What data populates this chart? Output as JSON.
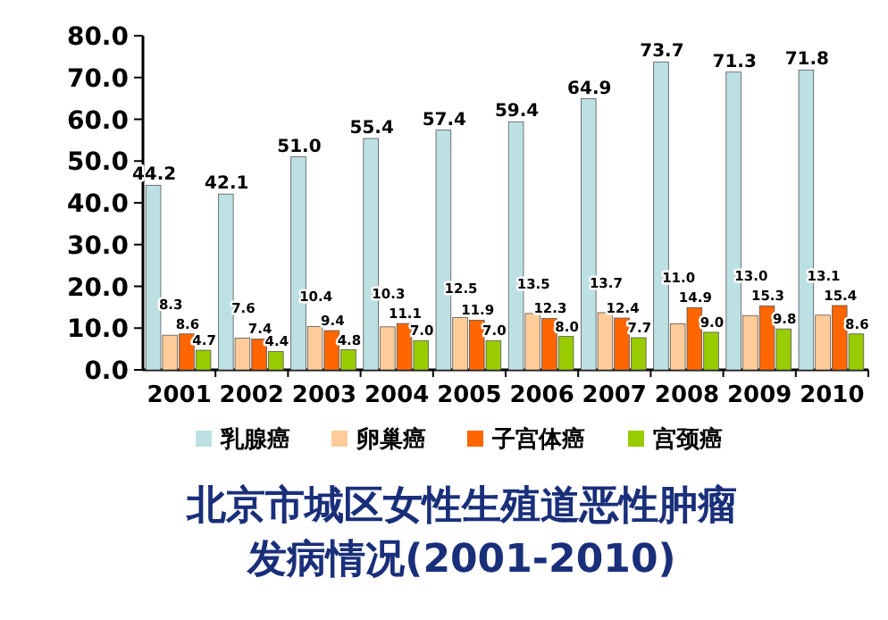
{
  "chart_data": {
    "type": "bar",
    "title": "北京市城区女性生殖道恶性肿瘤发病情况(2001-2010)",
    "categories": [
      "2001",
      "2002",
      "2003",
      "2004",
      "2005",
      "2006",
      "2007",
      "2008",
      "2009",
      "2010"
    ],
    "series": [
      {
        "name": "乳腺癌",
        "color": "#bde0e3",
        "values": [
          44.2,
          42.1,
          51.0,
          55.4,
          57.4,
          59.4,
          64.9,
          73.7,
          71.3,
          71.8
        ],
        "value_labels": [
          "44.2",
          "42.1",
          "51.0",
          "55.4",
          "57.4",
          "59.4",
          "64.9",
          "73.7",
          "71.3",
          "71.8"
        ]
      },
      {
        "name": "卵巢癌",
        "color": "#ffcc99",
        "values": [
          8.3,
          7.6,
          10.4,
          10.3,
          12.5,
          13.5,
          13.7,
          11.0,
          13.0,
          13.1
        ],
        "value_labels": [
          "8.3",
          "7.6",
          "10.4",
          "10.3",
          "12.5",
          "13.5",
          "13.7",
          "11.0",
          "13.0",
          "13.1"
        ]
      },
      {
        "name": "子宫体癌",
        "color": "#ff6600",
        "values": [
          8.6,
          7.4,
          9.4,
          11.1,
          11.9,
          12.3,
          12.4,
          14.9,
          15.3,
          15.4
        ],
        "value_labels": [
          "8.6",
          "7.4",
          "9.4",
          "11.1",
          "11.9",
          "12.3",
          "12.4",
          "14.9",
          "15.3",
          "15.4"
        ]
      },
      {
        "name": "宫颈癌",
        "color": "#99cc00",
        "values": [
          4.7,
          4.4,
          4.8,
          7.0,
          7.0,
          8.0,
          7.7,
          9.0,
          9.8,
          8.6
        ],
        "value_labels": [
          "4.7",
          "4.4",
          "4.8",
          "7.0",
          "7.0",
          "8.0",
          "7.7",
          "9.0",
          "9.8",
          "8.6"
        ]
      }
    ],
    "ylim": [
      0,
      80
    ],
    "yticks": [
      {
        "value": 0,
        "label": "0.0"
      },
      {
        "value": 10,
        "label": "10.0"
      },
      {
        "value": 20,
        "label": "20.0"
      },
      {
        "value": 30,
        "label": "30.0"
      },
      {
        "value": 40,
        "label": "40.0"
      },
      {
        "value": 50,
        "label": "50.0"
      },
      {
        "value": 60,
        "label": "60.0"
      },
      {
        "value": 70,
        "label": "70.0"
      },
      {
        "value": 80,
        "label": "80.0"
      }
    ],
    "legend": "bottom"
  }
}
